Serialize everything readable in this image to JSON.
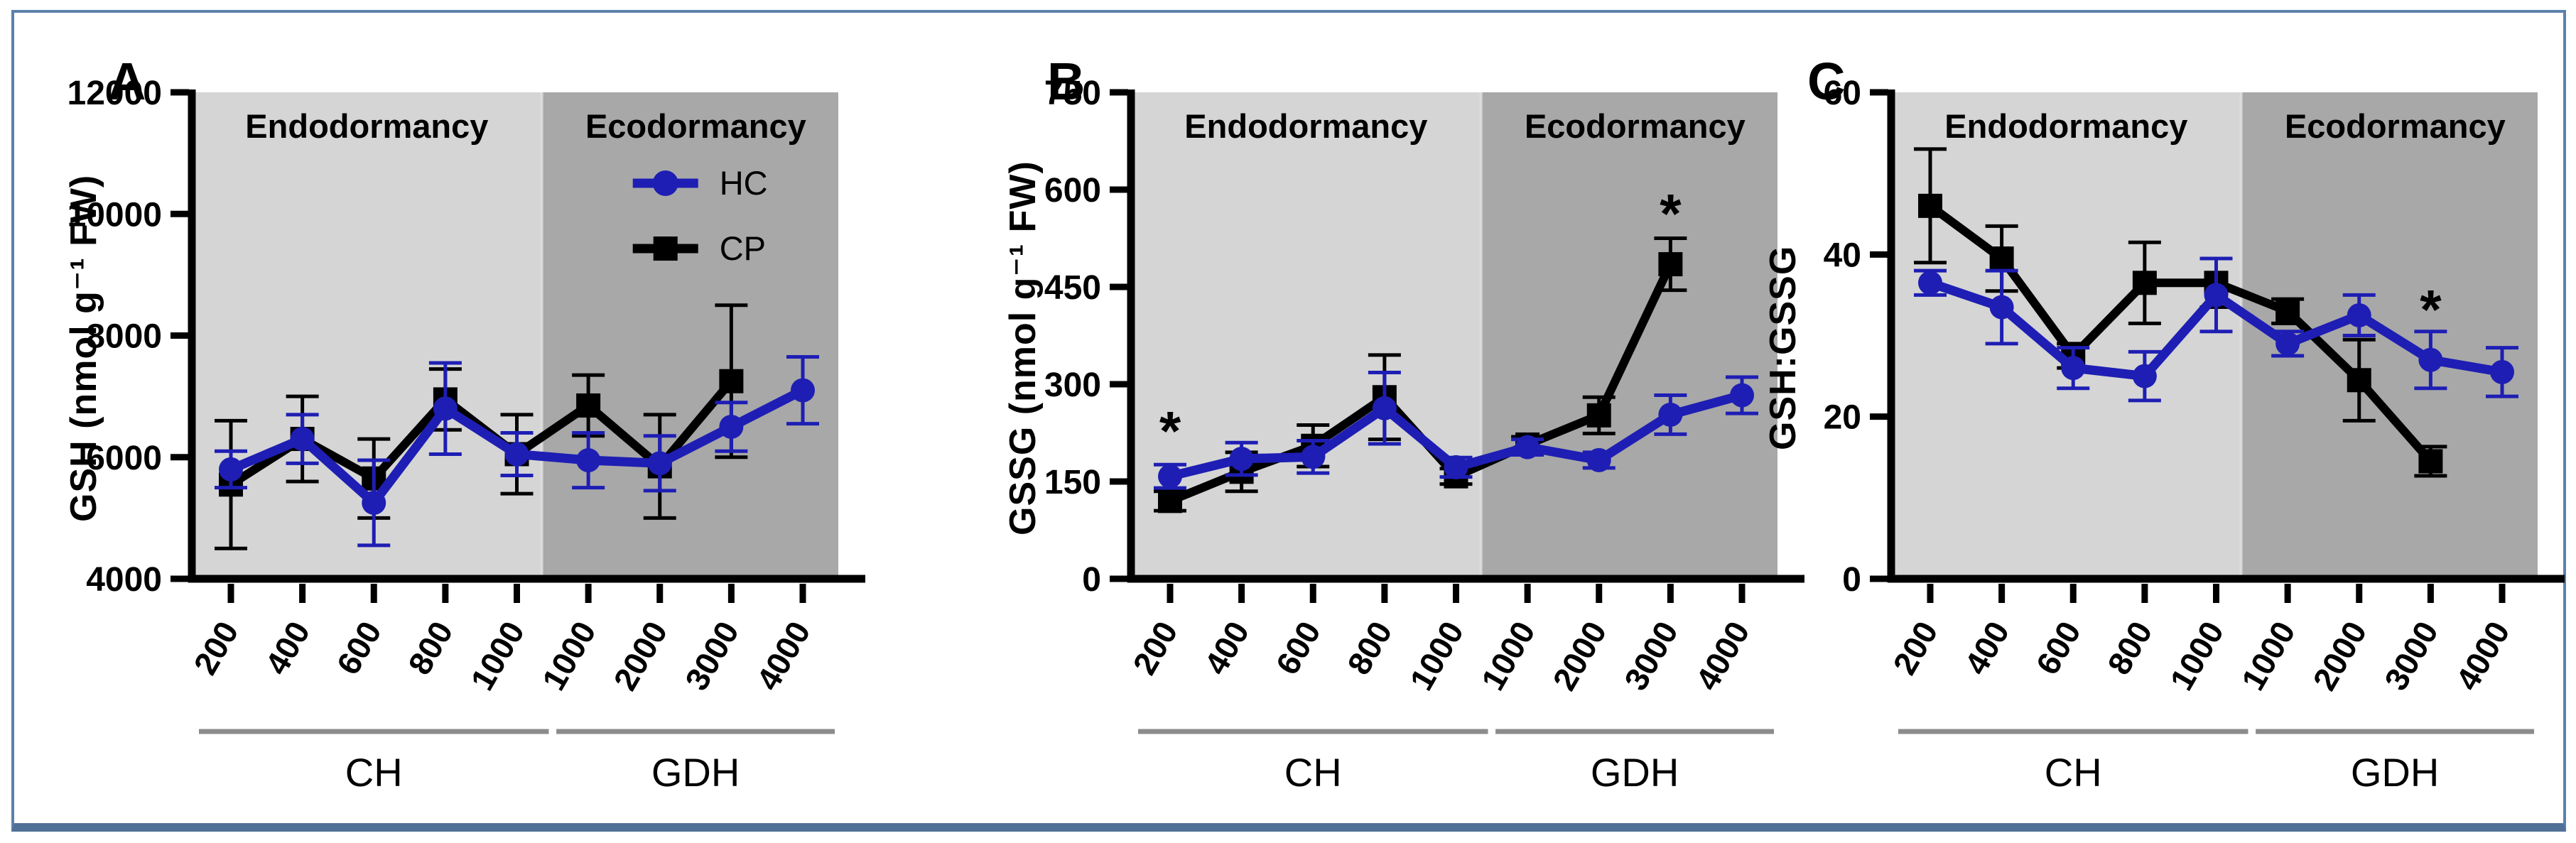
{
  "figure": {
    "border_color": "#5b81aa",
    "background": "#ffffff"
  },
  "style": {
    "hc_color": "#1e1eb4",
    "cp_color": "#000000",
    "endo_band_color": "#d5d5d5",
    "eco_band_color": "#a8a8a8",
    "axis_color": "#000000",
    "group_rule_color": "#8c8c8c",
    "text_color": "#000000"
  },
  "legend": {
    "items": [
      {
        "label": "HC",
        "marker": "circle-marker-icon",
        "color": "#1e1eb4"
      },
      {
        "label": "CP",
        "marker": "square-marker-icon",
        "color": "#000000"
      }
    ]
  },
  "chart_data": [
    {
      "type": "line",
      "panel_letter": "A",
      "ylabel": "GSH (nmol g⁻¹ FW)",
      "categories": [
        "200",
        "400",
        "600",
        "800",
        "1000",
        "1000",
        "2000",
        "3000",
        "4000"
      ],
      "groups": [
        {
          "label": "CH",
          "span": [
            0,
            4
          ]
        },
        {
          "label": "GDH",
          "span": [
            5,
            8
          ]
        }
      ],
      "regions": [
        {
          "label": "Endodormancy"
        },
        {
          "label": "Ecodormancy"
        }
      ],
      "ylim": [
        4000,
        12000
      ],
      "yticks": [
        "4000",
        "6000",
        "8000",
        "10000",
        "12000"
      ],
      "legend": true,
      "series": [
        {
          "name": "HC",
          "marker": "circle",
          "values": [
            5800,
            6300,
            5250,
            6800,
            6050,
            5950,
            5900,
            6500,
            7100
          ],
          "errors": [
            300,
            400,
            700,
            750,
            350,
            450,
            450,
            400,
            550
          ]
        },
        {
          "name": "CP",
          "marker": "square",
          "values": [
            5550,
            6300,
            5650,
            6950,
            6050,
            6850,
            5850,
            7250,
            null
          ],
          "errors": [
            1050,
            700,
            650,
            500,
            650,
            500,
            850,
            1250,
            null
          ]
        }
      ],
      "annotations": []
    },
    {
      "type": "line",
      "panel_letter": "B",
      "ylabel": "GSSG (nmol g⁻¹ FW)",
      "categories": [
        "200",
        "400",
        "600",
        "800",
        "1000",
        "1000",
        "2000",
        "3000",
        "4000"
      ],
      "groups": [
        {
          "label": "CH",
          "span": [
            0,
            4
          ]
        },
        {
          "label": "GDH",
          "span": [
            5,
            8
          ]
        }
      ],
      "regions": [
        {
          "label": "Endodormancy"
        },
        {
          "label": "Ecodormancy"
        }
      ],
      "ylim": [
        0,
        750
      ],
      "yticks": [
        "0",
        "150",
        "300",
        "450",
        "600",
        "750"
      ],
      "legend": false,
      "series": [
        {
          "name": "HC",
          "marker": "circle",
          "values": [
            158,
            185,
            188,
            263,
            172,
            203,
            183,
            253,
            283
          ],
          "errors": [
            18,
            25,
            25,
            55,
            15,
            12,
            12,
            30,
            28
          ]
        },
        {
          "name": "CP",
          "marker": "square",
          "values": [
            120,
            165,
            205,
            280,
            158,
            207,
            252,
            485,
            null
          ],
          "errors": [
            15,
            30,
            32,
            65,
            12,
            12,
            28,
            40,
            null
          ]
        }
      ],
      "annotations": [
        {
          "symbol": "*",
          "category_index": 0,
          "y": 225
        },
        {
          "symbol": "*",
          "category_index": 7,
          "y": 560
        }
      ]
    },
    {
      "type": "line",
      "panel_letter": "C",
      "ylabel": "GSH:GSSG",
      "categories": [
        "200",
        "400",
        "600",
        "800",
        "1000",
        "1000",
        "2000",
        "3000",
        "4000"
      ],
      "groups": [
        {
          "label": "CH",
          "span": [
            0,
            4
          ]
        },
        {
          "label": "GDH",
          "span": [
            5,
            8
          ]
        }
      ],
      "regions": [
        {
          "label": "Endodormancy"
        },
        {
          "label": "Ecodormancy"
        }
      ],
      "ylim": [
        0,
        60
      ],
      "yticks": [
        "0",
        "20",
        "40",
        "60"
      ],
      "legend": false,
      "series": [
        {
          "name": "HC",
          "marker": "circle",
          "values": [
            36.5,
            33.5,
            26,
            25,
            35,
            29,
            32.5,
            27,
            25.5
          ],
          "errors": [
            1.5,
            4.5,
            2.5,
            3,
            4.5,
            1.5,
            2.5,
            3.5,
            3
          ]
        },
        {
          "name": "CP",
          "marker": "square",
          "values": [
            46,
            39.5,
            27.5,
            36.5,
            36.5,
            33,
            24.5,
            14.5,
            null
          ],
          "errors": [
            7,
            4,
            1.5,
            5,
            3,
            1.5,
            5,
            1.8,
            null
          ]
        }
      ],
      "annotations": [
        {
          "symbol": "*",
          "category_index": 7,
          "y": 33
        }
      ]
    }
  ]
}
